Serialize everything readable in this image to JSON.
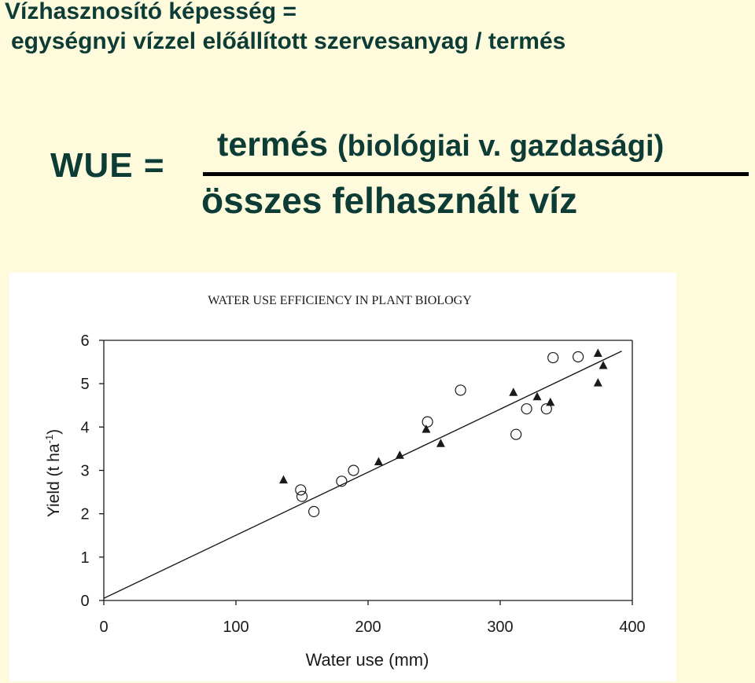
{
  "heading": {
    "line1": "Vízhasznosító képesség =",
    "line2": "egységnyi vízzel előállított szervesanyag / termés"
  },
  "formula": {
    "label": "WUE =",
    "numerator_main": "termés",
    "numerator_paren": "(biológiai v. gazdasági)",
    "denominator": "összes felhasznált víz"
  },
  "colors": {
    "background": "#fdfbdc",
    "text": "#0d3b36",
    "chart_ink": "#1a1a1a"
  },
  "chart_data": {
    "type": "scatter",
    "title": "WATER USE EFFICIENCY IN PLANT BIOLOGY",
    "xlabel": "Water use (mm)",
    "ylabel_main": "Yield (t ha",
    "ylabel_sup": "-1",
    "ylabel_close": ")",
    "xlim": [
      0,
      400
    ],
    "ylim": [
      0,
      6
    ],
    "xticks": [
      "0",
      "100",
      "200",
      "300",
      "400"
    ],
    "yticks": [
      "0",
      "1",
      "2",
      "3",
      "4",
      "5",
      "6"
    ],
    "grid": false,
    "series": [
      {
        "marker": "triangle-filled",
        "points": [
          [
            136,
            2.78
          ],
          [
            208,
            3.2
          ],
          [
            224,
            3.35
          ],
          [
            244,
            3.95
          ],
          [
            255,
            3.62
          ],
          [
            310,
            4.8
          ],
          [
            328,
            4.7
          ],
          [
            338,
            4.57
          ],
          [
            374,
            5.02
          ],
          [
            374,
            5.7
          ],
          [
            378,
            5.42
          ]
        ]
      },
      {
        "marker": "circle-open",
        "points": [
          [
            149,
            2.55
          ],
          [
            150,
            2.4
          ],
          [
            159,
            2.05
          ],
          [
            180,
            2.75
          ],
          [
            189,
            3.0
          ],
          [
            245,
            4.12
          ],
          [
            270,
            4.85
          ],
          [
            312,
            3.83
          ],
          [
            320,
            4.42
          ],
          [
            335,
            4.42
          ],
          [
            340,
            5.6
          ],
          [
            359,
            5.62
          ]
        ]
      }
    ],
    "trendline": {
      "x": [
        0,
        392
      ],
      "y": [
        0.05,
        5.75
      ]
    }
  }
}
